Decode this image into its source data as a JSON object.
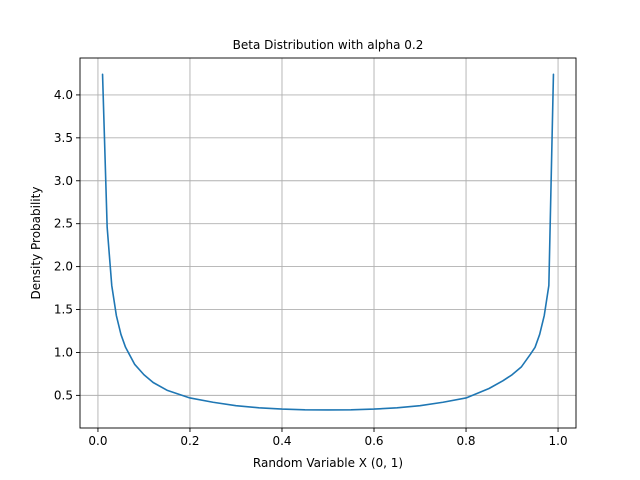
{
  "chart_data": {
    "type": "line",
    "title": "Beta Distribution with alpha 0.2",
    "xlabel": "Random Variable X (0, 1)",
    "ylabel": "Density Probability",
    "xlim": [
      -0.039,
      1.039
    ],
    "ylim": [
      0.12,
      4.43
    ],
    "xticks": [
      0.0,
      0.2,
      0.4,
      0.6,
      0.8,
      1.0
    ],
    "xtick_labels": [
      "0.0",
      "0.2",
      "0.4",
      "0.6",
      "0.8",
      "1.0"
    ],
    "yticks": [
      0.5,
      1.0,
      1.5,
      2.0,
      2.5,
      3.0,
      3.5,
      4.0
    ],
    "ytick_labels": [
      "0.5",
      "1.0",
      "1.5",
      "2.0",
      "2.5",
      "3.0",
      "3.5",
      "4.0"
    ],
    "grid": true,
    "series": [
      {
        "color": "#1f77b4",
        "x": [
          0.01,
          0.02,
          0.03,
          0.04,
          0.05,
          0.06,
          0.08,
          0.1,
          0.12,
          0.15,
          0.2,
          0.25,
          0.3,
          0.35,
          0.4,
          0.45,
          0.5,
          0.55,
          0.6,
          0.65,
          0.7,
          0.75,
          0.8,
          0.85,
          0.88,
          0.9,
          0.92,
          0.94,
          0.95,
          0.96,
          0.97,
          0.98,
          0.99
        ],
        "y": [
          4.24,
          2.46,
          1.78,
          1.43,
          1.21,
          1.06,
          0.86,
          0.74,
          0.65,
          0.56,
          0.47,
          0.42,
          0.38,
          0.355,
          0.34,
          0.332,
          0.33,
          0.332,
          0.34,
          0.355,
          0.38,
          0.42,
          0.47,
          0.58,
          0.67,
          0.74,
          0.83,
          0.98,
          1.06,
          1.21,
          1.43,
          1.78,
          4.24
        ]
      }
    ]
  }
}
